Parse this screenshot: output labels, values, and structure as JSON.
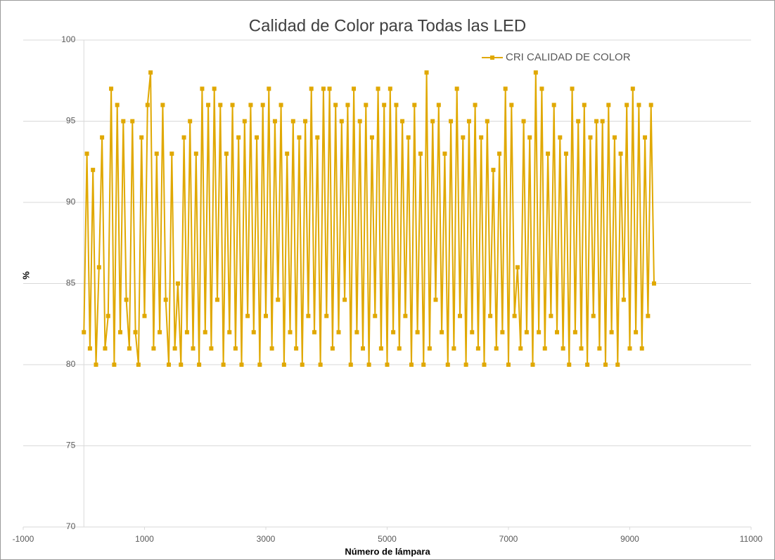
{
  "chart_data": {
    "type": "line",
    "title": "Calidad de Color para Todas las LED",
    "x_label": "Número de lámpara",
    "y_label": "%",
    "xlim": [
      -1000,
      11000
    ],
    "xticks": [
      -1000,
      1000,
      3000,
      5000,
      7000,
      9000,
      11000
    ],
    "ylim": [
      70,
      100
    ],
    "yticks": [
      70,
      75,
      80,
      85,
      90,
      95,
      100
    ],
    "grid": true,
    "legend": "top-right",
    "x": [
      0,
      50,
      100,
      150,
      200,
      250,
      300,
      350,
      400,
      450,
      500,
      550,
      600,
      650,
      700,
      750,
      800,
      850,
      900,
      950,
      1000,
      1050,
      1100,
      1150,
      1200,
      1250,
      1300,
      1350,
      1400,
      1450,
      1500,
      1550,
      1600,
      1650,
      1700,
      1750,
      1800,
      1850,
      1900,
      1950,
      2000,
      2050,
      2100,
      2150,
      2200,
      2250,
      2300,
      2350,
      2400,
      2450,
      2500,
      2550,
      2600,
      2650,
      2700,
      2750,
      2800,
      2850,
      2900,
      2950,
      3000,
      3050,
      3100,
      3150,
      3200,
      3250,
      3300,
      3350,
      3400,
      3450,
      3500,
      3550,
      3600,
      3650,
      3700,
      3750,
      3800,
      3850,
      3900,
      3950,
      4000,
      4050,
      4100,
      4150,
      4200,
      4250,
      4300,
      4350,
      4400,
      4450,
      4500,
      4550,
      4600,
      4650,
      4700,
      4750,
      4800,
      4850,
      4900,
      4950,
      5000,
      5050,
      5100,
      5150,
      5200,
      5250,
      5300,
      5350,
      5400,
      5450,
      5500,
      5550,
      5600,
      5650,
      5700,
      5750,
      5800,
      5850,
      5900,
      5950,
      6000,
      6050,
      6100,
      6150,
      6200,
      6250,
      6300,
      6350,
      6400,
      6450,
      6500,
      6550,
      6600,
      6650,
      6700,
      6750,
      6800,
      6850,
      6900,
      6950,
      7000,
      7050,
      7100,
      7150,
      7200,
      7250,
      7300,
      7350,
      7400,
      7450,
      7500,
      7550,
      7600,
      7650,
      7700,
      7750,
      7800,
      7850,
      7900,
      7950,
      8000,
      8050,
      8100,
      8150,
      8200,
      8250,
      8300,
      8350,
      8400,
      8450,
      8500,
      8550,
      8600,
      8650,
      8700,
      8750,
      8800,
      8850,
      8900,
      8950,
      9000,
      9050,
      9100,
      9150,
      9200,
      9250,
      9300,
      9350,
      9400
    ],
    "series": [
      {
        "name": "CRI CALIDAD DE COLOR",
        "color": "#e0a800",
        "values": [
          82,
          93,
          81,
          92,
          80,
          86,
          94,
          81,
          83,
          97,
          80,
          96,
          82,
          95,
          84,
          81,
          95,
          82,
          80,
          94,
          83,
          96,
          98,
          81,
          93,
          82,
          96,
          84,
          80,
          93,
          81,
          85,
          80,
          94,
          82,
          95,
          81,
          93,
          80,
          97,
          82,
          96,
          81,
          97,
          84,
          96,
          80,
          93,
          82,
          96,
          81,
          94,
          80,
          95,
          83,
          96,
          82,
          94,
          80,
          96,
          83,
          97,
          81,
          95,
          84,
          96,
          80,
          93,
          82,
          95,
          81,
          94,
          80,
          95,
          83,
          97,
          82,
          94,
          80,
          97,
          83,
          97,
          81,
          96,
          82,
          95,
          84,
          96,
          80,
          97,
          82,
          95,
          81,
          96,
          80,
          94,
          83,
          97,
          81,
          96,
          80,
          97,
          82,
          96,
          81,
          95,
          83,
          94,
          80,
          96,
          82,
          93,
          80,
          98,
          81,
          95,
          84,
          96,
          82,
          93,
          80,
          95,
          81,
          97,
          83,
          94,
          80,
          95,
          82,
          96,
          81,
          94,
          80,
          95,
          83,
          92,
          81,
          93,
          82,
          97,
          80,
          96,
          83,
          86,
          81,
          95,
          82,
          94,
          80,
          98,
          82,
          97,
          81,
          93,
          83,
          96,
          82,
          94,
          81,
          93,
          80,
          97,
          82,
          95,
          81,
          96,
          80,
          94,
          83,
          95,
          81,
          95,
          80,
          96,
          82,
          94,
          80,
          93,
          84,
          96,
          81,
          97,
          82,
          96,
          81,
          94,
          83,
          96,
          85
        ]
      }
    ]
  }
}
